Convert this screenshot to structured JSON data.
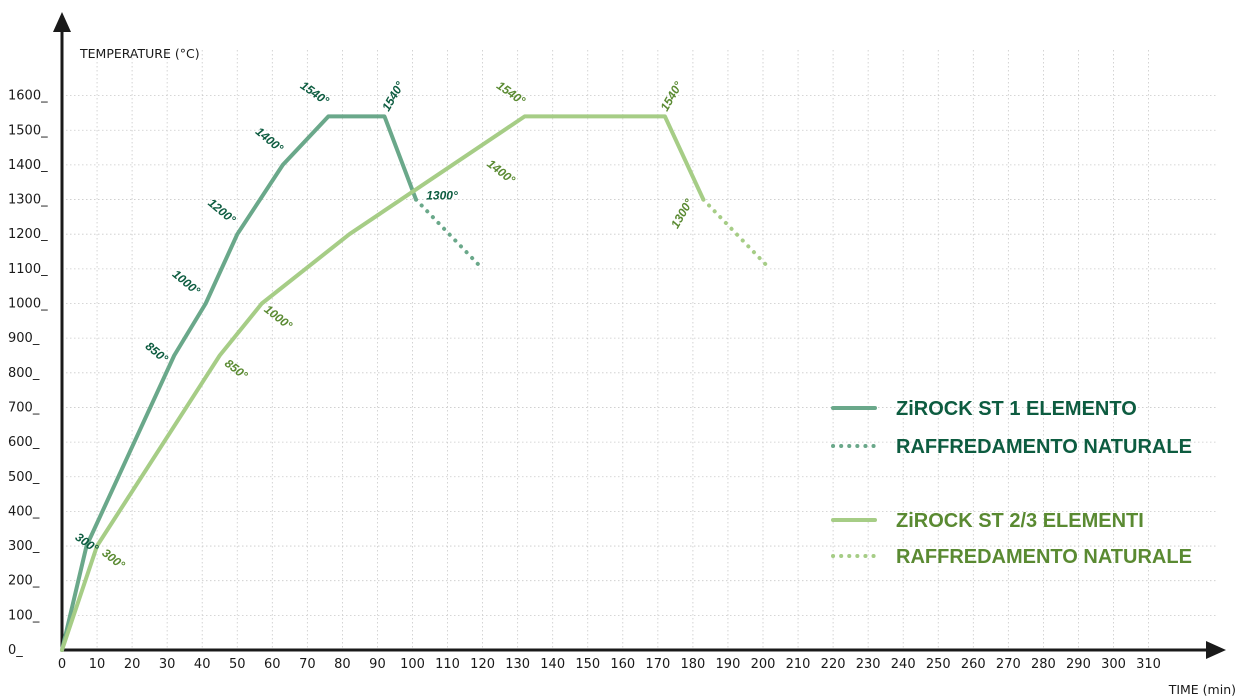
{
  "chart_data": {
    "type": "line",
    "xlabel": "TIME (min)",
    "ylabel": "TEMPERATURE (°C)",
    "xlim": [
      0,
      315
    ],
    "ylim": [
      0,
      1700
    ],
    "x_ticks": [
      0,
      10,
      20,
      30,
      40,
      50,
      60,
      70,
      80,
      90,
      100,
      110,
      120,
      130,
      140,
      150,
      160,
      170,
      180,
      190,
      200,
      210,
      220,
      230,
      240,
      250,
      260,
      270,
      280,
      290,
      300,
      310
    ],
    "y_ticks": [
      0,
      100,
      200,
      300,
      400,
      500,
      600,
      700,
      800,
      900,
      1000,
      1100,
      1200,
      1300,
      1400,
      1500,
      1600
    ],
    "y_tick_suffix": "_",
    "grid": true,
    "legend_position": "right",
    "colors": {
      "series1": "#6aa88a",
      "series1_text": "#0d5c40",
      "series2": "#a6cd86",
      "series2_text": "#5a8a32"
    },
    "series": [
      {
        "name": "ZiROCK ST 1 ELEMENTO",
        "style": "solid",
        "color": "#6aa88a",
        "points": [
          [
            0,
            0
          ],
          [
            7,
            300
          ],
          [
            32,
            850
          ],
          [
            41,
            1000
          ],
          [
            50,
            1200
          ],
          [
            63,
            1400
          ],
          [
            76,
            1540
          ],
          [
            92,
            1540
          ],
          [
            101,
            1300
          ]
        ],
        "annotations": [
          {
            "x": 7,
            "y": 300,
            "text": "300°"
          },
          {
            "x": 32,
            "y": 850,
            "text": "850°"
          },
          {
            "x": 41,
            "y": 1000,
            "text": "1000°"
          },
          {
            "x": 50,
            "y": 1200,
            "text": "1200°"
          },
          {
            "x": 63,
            "y": 1400,
            "text": "1400°"
          },
          {
            "x": 76,
            "y": 1540,
            "text": "1540°"
          },
          {
            "x": 92,
            "y": 1540,
            "text": "1540°"
          },
          {
            "x": 101,
            "y": 1300,
            "text": "1300°"
          }
        ]
      },
      {
        "name": "RAFFREDAMENTO NATURALE",
        "style": "dotted",
        "color": "#6aa88a",
        "points": [
          [
            101,
            1300
          ],
          [
            120,
            1100
          ]
        ]
      },
      {
        "name": "ZiROCK ST 2/3 ELEMENTI",
        "style": "solid",
        "color": "#a6cd86",
        "points": [
          [
            0,
            0
          ],
          [
            10,
            300
          ],
          [
            45,
            850
          ],
          [
            57,
            1000
          ],
          [
            82,
            1200
          ],
          [
            132,
            1540
          ],
          [
            172,
            1540
          ],
          [
            183,
            1300
          ]
        ],
        "annotations": [
          {
            "x": 10,
            "y": 300,
            "text": "300°"
          },
          {
            "x": 45,
            "y": 850,
            "text": "850°"
          },
          {
            "x": 57,
            "y": 1000,
            "text": "1000°"
          },
          {
            "x": 120,
            "y": 1400,
            "text": "1400°"
          },
          {
            "x": 132,
            "y": 1540,
            "text": "1540°"
          },
          {
            "x": 172,
            "y": 1540,
            "text": "1540°"
          },
          {
            "x": 183,
            "y": 1300,
            "text": "1300°"
          }
        ]
      },
      {
        "name": "RAFFREDAMENTO NATURALE",
        "style": "dotted",
        "color": "#a6cd86",
        "points": [
          [
            183,
            1300
          ],
          [
            202,
            1100
          ]
        ]
      }
    ]
  }
}
